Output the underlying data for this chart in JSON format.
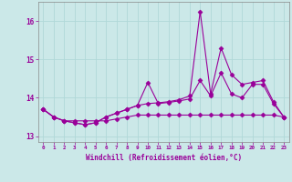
{
  "xlabel": "Windchill (Refroidissement éolien,°C)",
  "background_color": "#cbe8e8",
  "grid_color": "#b0d8d8",
  "line_color": "#990099",
  "x": [
    0,
    1,
    2,
    3,
    4,
    5,
    6,
    7,
    8,
    9,
    10,
    11,
    12,
    13,
    14,
    15,
    16,
    17,
    18,
    19,
    20,
    21,
    22,
    23
  ],
  "series1": [
    13.7,
    13.5,
    13.4,
    13.4,
    13.4,
    13.4,
    13.4,
    13.45,
    13.5,
    13.55,
    13.55,
    13.55,
    13.55,
    13.55,
    13.55,
    13.55,
    13.55,
    13.55,
    13.55,
    13.55,
    13.55,
    13.55,
    13.55,
    13.5
  ],
  "series2": [
    13.7,
    13.5,
    13.4,
    13.35,
    13.3,
    13.35,
    13.5,
    13.6,
    13.7,
    13.8,
    13.85,
    13.87,
    13.9,
    13.95,
    14.05,
    16.25,
    14.1,
    15.3,
    14.6,
    14.35,
    14.4,
    14.45,
    13.9,
    13.5
  ],
  "series3": [
    13.7,
    13.5,
    13.4,
    13.35,
    13.3,
    13.35,
    13.5,
    13.6,
    13.7,
    13.8,
    14.4,
    13.85,
    13.88,
    13.92,
    13.97,
    14.45,
    14.05,
    14.65,
    14.1,
    14.0,
    14.35,
    14.35,
    13.85,
    13.5
  ],
  "ylim": [
    12.85,
    16.5
  ],
  "yticks": [
    13,
    14,
    15,
    16
  ],
  "xlim": [
    -0.5,
    23.5
  ]
}
